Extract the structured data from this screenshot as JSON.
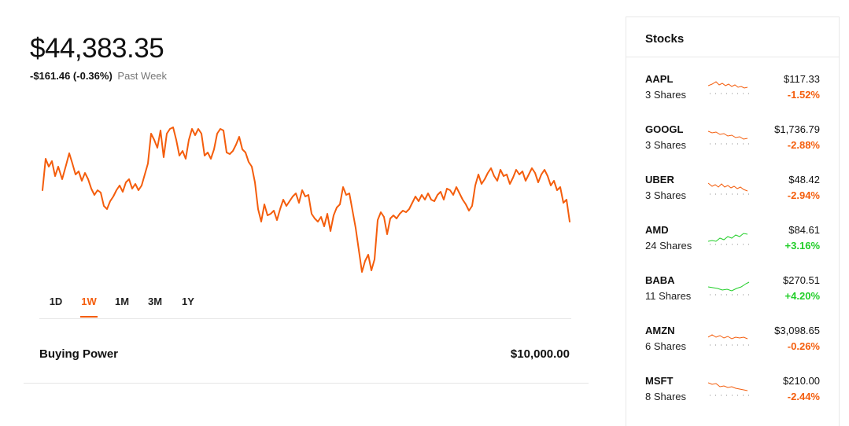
{
  "portfolio": {
    "value": "$44,383.35",
    "change": "-$161.46 (-0.36%)",
    "period": "Past Week",
    "line_color": "#f45d0c"
  },
  "range_tabs": [
    {
      "label": "1D",
      "active": false
    },
    {
      "label": "1W",
      "active": true
    },
    {
      "label": "1M",
      "active": false
    },
    {
      "label": "3M",
      "active": false
    },
    {
      "label": "1Y",
      "active": false
    }
  ],
  "buying_power": {
    "label": "Buying Power",
    "value": "$10,000.00"
  },
  "stocks_panel": {
    "title": "Stocks",
    "items": [
      {
        "symbol": "AAPL",
        "shares": "3 Shares",
        "price": "$117.33",
        "change": "-1.52%",
        "direction": "down"
      },
      {
        "symbol": "GOOGL",
        "shares": "3 Shares",
        "price": "$1,736.79",
        "change": "-2.88%",
        "direction": "down"
      },
      {
        "symbol": "UBER",
        "shares": "3 Shares",
        "price": "$48.42",
        "change": "-2.94%",
        "direction": "down"
      },
      {
        "symbol": "AMD",
        "shares": "24 Shares",
        "price": "$84.61",
        "change": "+3.16%",
        "direction": "up"
      },
      {
        "symbol": "BABA",
        "shares": "11 Shares",
        "price": "$270.51",
        "change": "+4.20%",
        "direction": "up"
      },
      {
        "symbol": "AMZN",
        "shares": "6 Shares",
        "price": "$3,098.65",
        "change": "-0.26%",
        "direction": "down"
      },
      {
        "symbol": "MSFT",
        "shares": "8 Shares",
        "price": "$210.00",
        "change": "-2.44%",
        "direction": "down"
      }
    ]
  },
  "colors": {
    "negative": "#f45d0c",
    "positive": "#21ce28"
  }
}
